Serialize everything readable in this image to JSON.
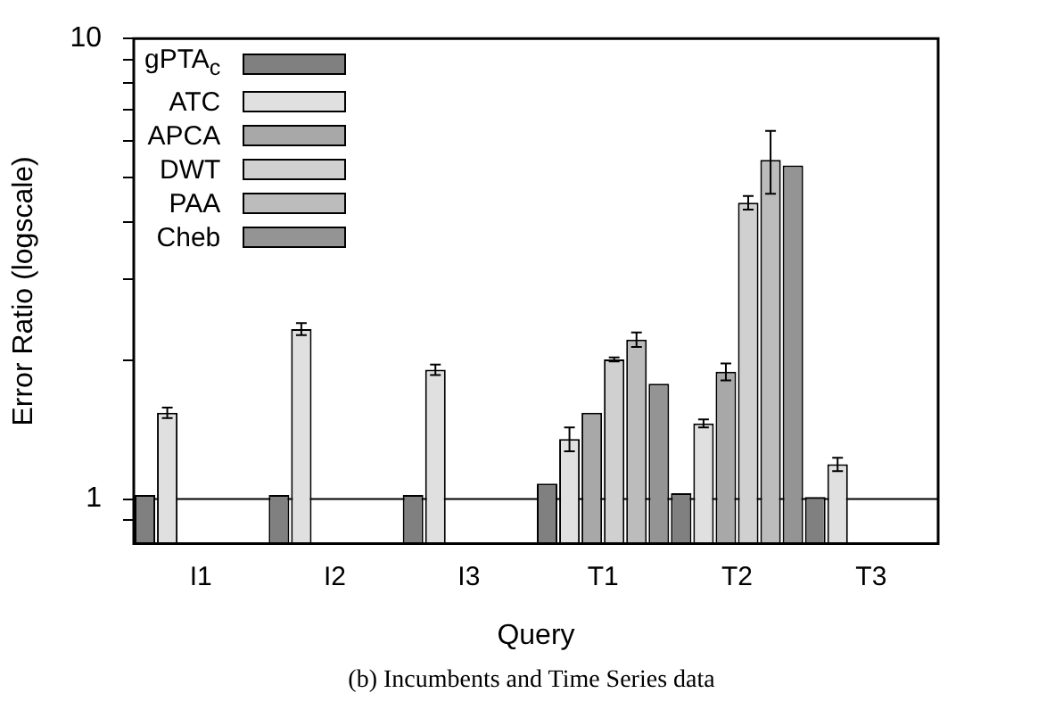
{
  "chart_data": {
    "type": "bar",
    "xlabel": "Query",
    "ylabel": "Error Ratio (logscale)",
    "categories": [
      "I1",
      "I2",
      "I3",
      "T1",
      "T2",
      "T3"
    ],
    "series": [
      {
        "name": "gPTA$_{c}$",
        "color": "#808080",
        "values": [
          1.02,
          1.02,
          1.02,
          1.08,
          1.03,
          1.01
        ]
      },
      {
        "name": "ATC",
        "color": "#e0e0e0",
        "values": [
          1.54,
          2.34,
          1.91,
          1.35,
          1.46,
          1.19
        ],
        "errors": [
          0.04,
          0.07,
          0.05,
          0.08,
          0.03,
          0.04
        ]
      },
      {
        "name": "APCA",
        "color": "#a8a8a8",
        "values": [
          null,
          null,
          null,
          1.54,
          1.89,
          null
        ],
        "errors": [
          null,
          null,
          null,
          null,
          0.08,
          null
        ]
      },
      {
        "name": "DWT",
        "color": "#d0d0d0",
        "values": [
          null,
          null,
          null,
          2.01,
          4.4,
          null
        ],
        "errors": [
          null,
          null,
          null,
          0.02,
          0.15,
          null
        ]
      },
      {
        "name": "PAA",
        "color": "#bcbcbc",
        "values": [
          null,
          null,
          null,
          2.22,
          5.45,
          null
        ],
        "errors": [
          null,
          null,
          null,
          0.08,
          0.85,
          null
        ]
      },
      {
        "name": "Cheb",
        "color": "#949494",
        "values": [
          null,
          null,
          null,
          1.78,
          5.3,
          null
        ]
      }
    ],
    "log": true,
    "ylim": [
      0.8,
      10
    ],
    "yticks": [
      {
        "value": 0.9,
        "label": null
      },
      1,
      {
        "value": 2,
        "label": null
      },
      {
        "value": 3,
        "label": null
      },
      {
        "value": 4,
        "label": null
      },
      {
        "value": 5,
        "label": null
      },
      {
        "value": 6,
        "label": null
      },
      {
        "value": 7,
        "label": null
      },
      {
        "value": 8,
        "label": null
      },
      {
        "value": 9,
        "label": null
      },
      10
    ],
    "ref_lines": [
      {
        "axis": "y",
        "value": 1
      }
    ],
    "grid": false,
    "legend": "top left",
    "annotations": [
      "(b) Incumbents and Time Series data"
    ]
  }
}
